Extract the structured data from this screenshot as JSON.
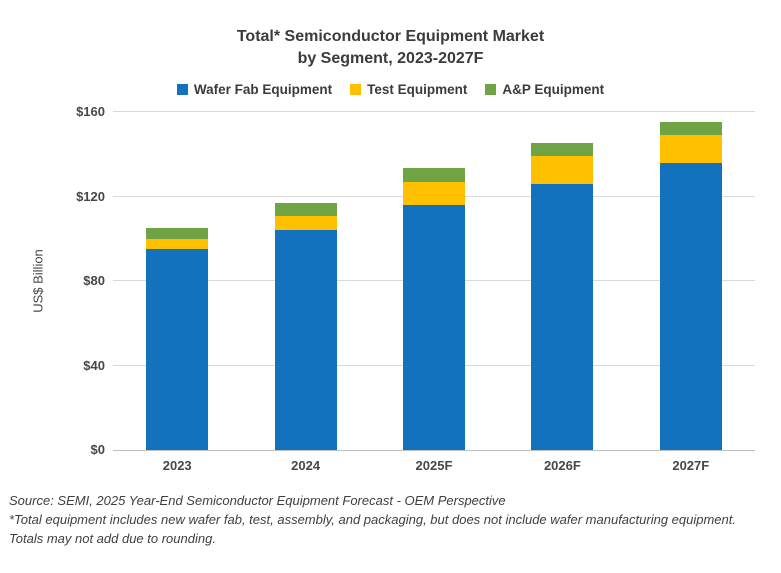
{
  "title": {
    "line1": "Total* Semiconductor Equipment Market",
    "line2": "by Segment, 2023-2027F"
  },
  "footer": {
    "source_line": "Source: SEMI, 2025 Year-End Semiconductor Equipment Forecast - OEM Perspective",
    "note_line1": "*Total equipment includes new wafer fab, test, assembly, and packaging, but does not include wafer manufacturing equipment.",
    "note_line2": "Totals may not add due to rounding."
  },
  "colors": {
    "wafer_fab": "#1272BD",
    "test": "#FFC000",
    "ap": "#6FA343",
    "gridline": "#D9D9D9",
    "axis_line": "#BFBFBF",
    "text": "#3F3F3F"
  },
  "chart_data": {
    "type": "bar",
    "stacked": true,
    "title": "Total* Semiconductor Equipment Market by Segment, 2023-2027F",
    "categories": [
      "2023",
      "2024",
      "2025F",
      "2026F",
      "2027F"
    ],
    "series": [
      {
        "name": "Wafer Fab Equipment",
        "color": "#1272BD",
        "values": [
          95,
          104,
          116,
          126,
          136
        ]
      },
      {
        "name": "Test Equipment",
        "color": "#FFC000",
        "values": [
          5,
          7,
          11,
          13,
          13
        ]
      },
      {
        "name": "A&P Equipment",
        "color": "#6FA343",
        "values": [
          5,
          6,
          6.5,
          6.5,
          6.5
        ]
      }
    ],
    "totals_approx": [
      105,
      117,
      133.5,
      145.5,
      155.5
    ],
    "xlabel": "",
    "ylabel": "US$ Billion",
    "ylim": [
      0,
      160
    ],
    "yticks": [
      0,
      40,
      80,
      120,
      160
    ],
    "ytick_labels": [
      "$0",
      "$40",
      "$80",
      "$120",
      "$160"
    ],
    "grid": true,
    "legend_position": "top"
  }
}
